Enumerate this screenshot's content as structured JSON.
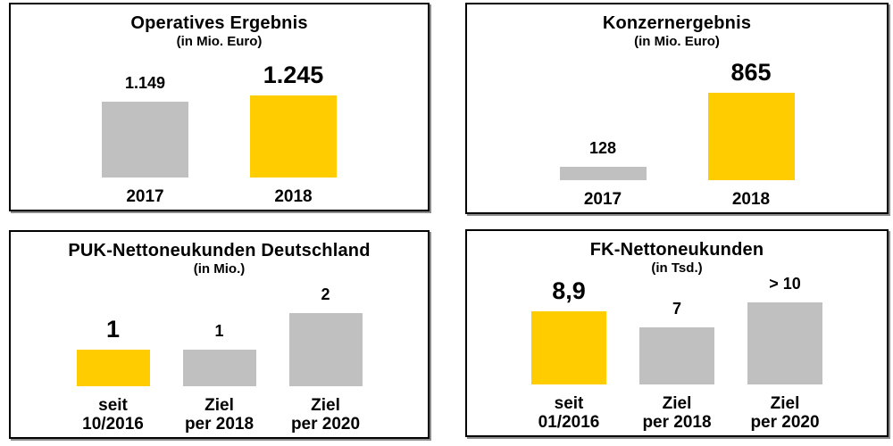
{
  "window": {
    "background": "#ffffff"
  },
  "colors": {
    "highlight": "#FFCC00",
    "bar_default": "#C0C0C0",
    "text": "#000000",
    "panel_border": "#000000",
    "panel_background": "#ffffff"
  },
  "chart_data": [
    {
      "id": "operatives-ergebnis",
      "type": "bar",
      "title": "Operatives Ergebnis",
      "subtitle": "(in Mio. Euro)",
      "categories": [
        "2017",
        "2018"
      ],
      "category_lines": [
        [
          "2017"
        ],
        [
          "2018"
        ]
      ],
      "values": [
        1149,
        1245
      ],
      "value_labels": [
        "1.149",
        "1.245"
      ],
      "highlight_index": 1,
      "emphasis_index": 1,
      "unit": "Mio. Euro",
      "xlabel": "",
      "ylabel": "",
      "ylim": [
        0,
        1245
      ],
      "grid": false,
      "legend": false
    },
    {
      "id": "konzernergebnis",
      "type": "bar",
      "title": "Konzernergebnis",
      "subtitle": "(in Mio. Euro)",
      "categories": [
        "2017",
        "2018"
      ],
      "category_lines": [
        [
          "2017"
        ],
        [
          "2018"
        ]
      ],
      "values": [
        128,
        865
      ],
      "value_labels": [
        "128",
        "865"
      ],
      "highlight_index": 1,
      "emphasis_index": 1,
      "unit": "Mio. Euro",
      "xlabel": "",
      "ylabel": "",
      "ylim": [
        0,
        865
      ],
      "grid": false,
      "legend": false
    },
    {
      "id": "puk-nettoneukunden-deutschland",
      "type": "bar",
      "title": "PUK-Nettoneukunden Deutschland",
      "subtitle": "(in Mio.)",
      "categories": [
        "seit 10/2016",
        "Ziel per 2018",
        "Ziel per 2020"
      ],
      "category_lines": [
        [
          "seit",
          "10/2016"
        ],
        [
          "Ziel",
          "per 2018"
        ],
        [
          "Ziel",
          "per 2020"
        ]
      ],
      "values": [
        1,
        1,
        2
      ],
      "value_labels": [
        "1",
        "1",
        "2"
      ],
      "highlight_index": 0,
      "emphasis_index": 0,
      "unit": "Mio.",
      "xlabel": "",
      "ylabel": "",
      "ylim": [
        0,
        2
      ],
      "grid": false,
      "legend": false
    },
    {
      "id": "fk-nettoneukunden",
      "type": "bar",
      "title": "FK-Nettoneukunden",
      "subtitle": "(in Tsd.)",
      "categories": [
        "seit 01/2016",
        "Ziel per 2018",
        "Ziel per 2020"
      ],
      "category_lines": [
        [
          "seit",
          "01/2016"
        ],
        [
          "Ziel",
          "per 2018"
        ],
        [
          "Ziel",
          "per 2020"
        ]
      ],
      "values": [
        8.9,
        7,
        10
      ],
      "value_labels": [
        "8,9",
        "7",
        "> 10"
      ],
      "highlight_index": 0,
      "emphasis_index": 0,
      "unit": "Tsd.",
      "xlabel": "",
      "ylabel": "",
      "ylim": [
        0,
        10
      ],
      "grid": false,
      "legend": false
    }
  ]
}
